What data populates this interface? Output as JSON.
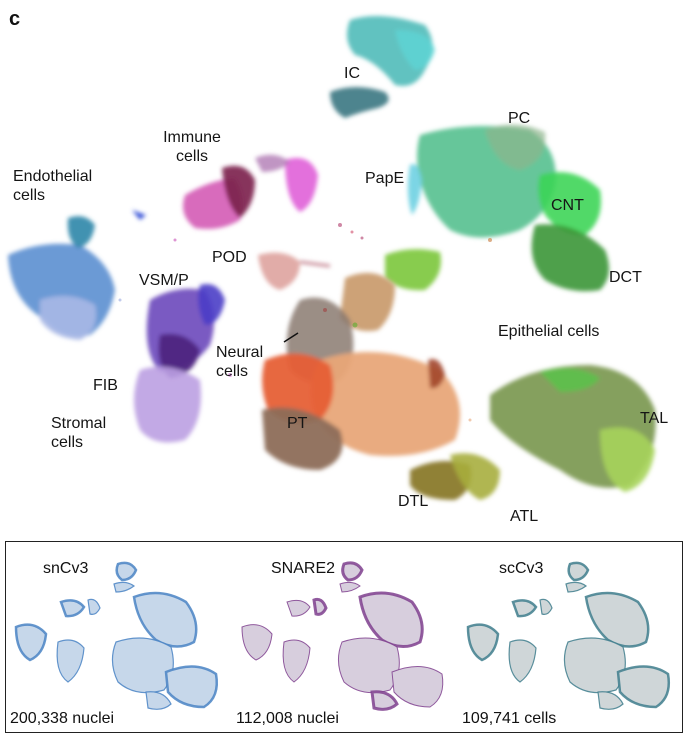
{
  "panel_letter": "c",
  "clusters": {
    "ic": "IC",
    "pc": "PC",
    "immune": [
      "Immune",
      "cells"
    ],
    "endothelial": [
      "Endothelial",
      "cells"
    ],
    "pape": "PapE",
    "cnt": "CNT",
    "pod": "POD",
    "dct": "DCT",
    "vsmp": "VSM/P",
    "epithelial": "Epithelial cells",
    "neural": [
      "Neural",
      "cells"
    ],
    "fib": "FIB",
    "stromal": [
      "Stromal",
      "cells"
    ],
    "pt": "PT",
    "tal": "TAL",
    "dtl": "DTL",
    "atl": "ATL"
  },
  "colors": {
    "ic": "#3fa6a4",
    "pc": "#4cbf8e",
    "cnt": "#3ad25a",
    "dct": "#3d9b3a",
    "immune": "#c84fb6",
    "endothelial": "#5a8fcf",
    "vsmp": "#6c47b8",
    "stromal": "#b99ce0",
    "pod": "#dfa3a0",
    "pt": "#e86a3c",
    "pt_core": "#eba274",
    "tal": "#7f9a52",
    "dtl": "#8a7b2a",
    "atl": "#a2ab3b",
    "neural": "#8a7a70"
  },
  "datasets": [
    {
      "name": "snCv3",
      "count": "200,338 nuclei",
      "color": "#4a84c4",
      "base": "#c6d7ea"
    },
    {
      "name": "SNARE2",
      "count": "112,008 nuclei",
      "color": "#7f3f8e",
      "base": "#d7cedd"
    },
    {
      "name": "scCv3",
      "count": "109,741 cells",
      "color": "#3f7e8d",
      "base": "#cfd6d8"
    }
  ]
}
